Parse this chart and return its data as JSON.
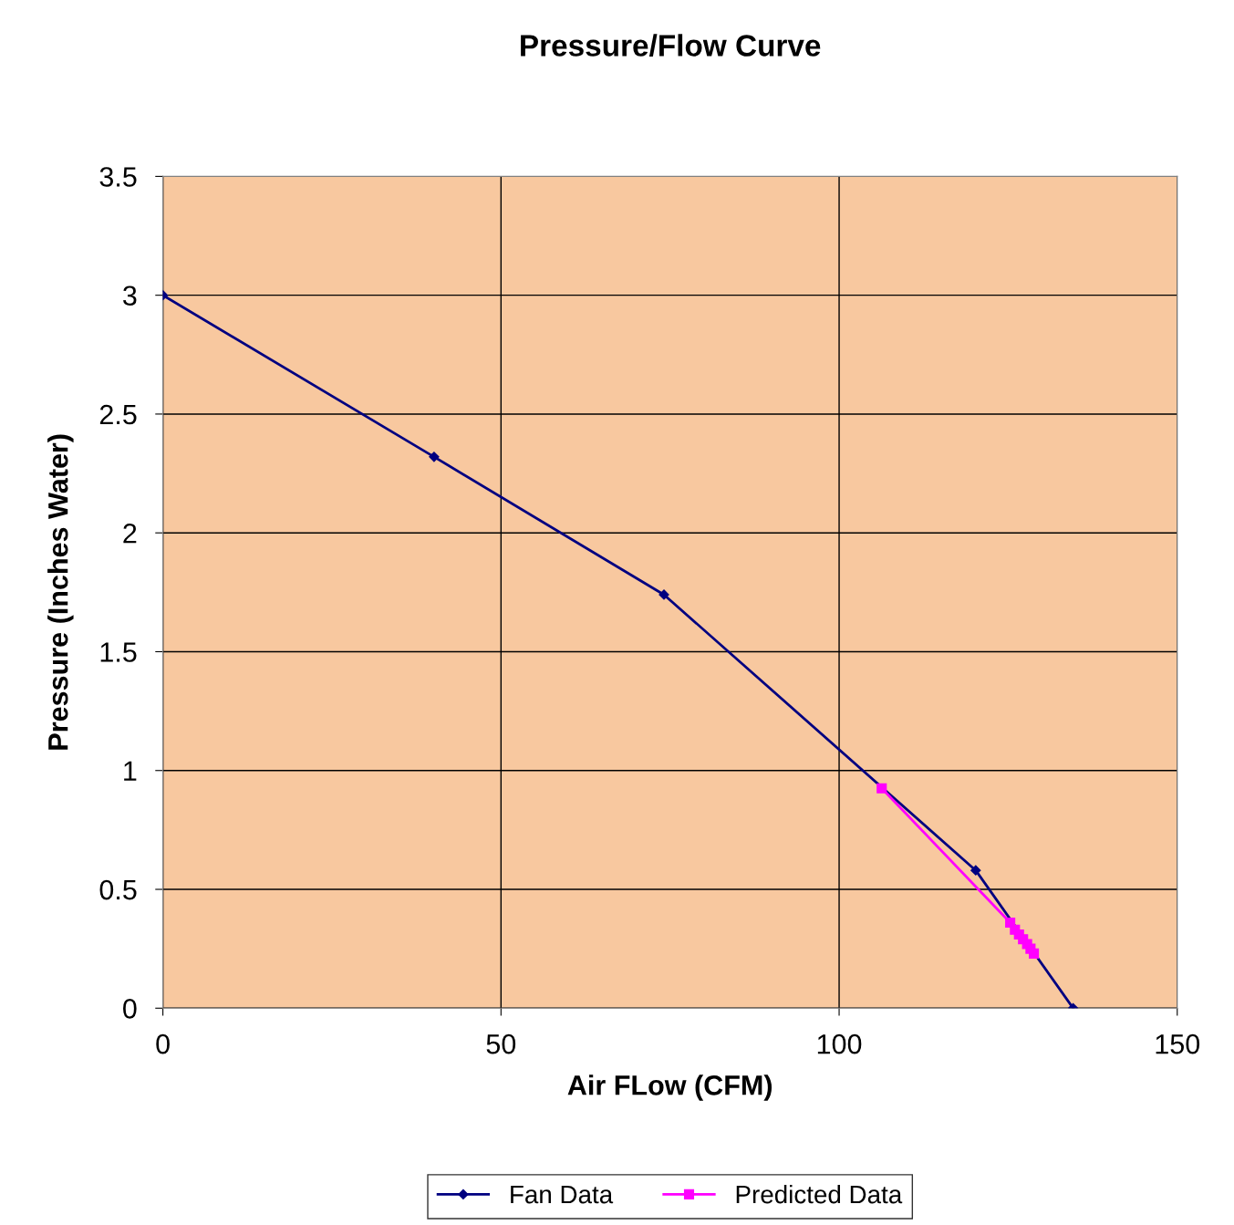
{
  "chart_data": {
    "type": "line",
    "title": "Pressure/Flow Curve",
    "xlabel": "Air FLow (CFM)",
    "ylabel": "Pressure (Inches Water)",
    "xlim": [
      0,
      150
    ],
    "xticks": [
      0,
      50,
      100,
      150
    ],
    "ylim": [
      0,
      3.5
    ],
    "yticks": [
      0,
      0.5,
      1,
      1.5,
      2,
      2.5,
      3,
      3.5
    ],
    "grid": true,
    "legend": "bottom",
    "series": [
      {
        "name": "Fan Data",
        "color": "#000080",
        "marker": "diamond",
        "x": [
          0,
          40.1,
          74.1,
          120.2,
          134.6
        ],
        "values": [
          3.0,
          2.32,
          1.74,
          0.58,
          0
        ]
      },
      {
        "name": "Predicted Data",
        "color": "#ff00ff",
        "marker": "square",
        "x": [
          106.3,
          125.3,
          126.0,
          126.6,
          127.2,
          127.8,
          128.3,
          128.8
        ],
        "values": [
          0.925,
          0.36,
          0.33,
          0.31,
          0.29,
          0.27,
          0.25,
          0.23
        ]
      }
    ]
  }
}
